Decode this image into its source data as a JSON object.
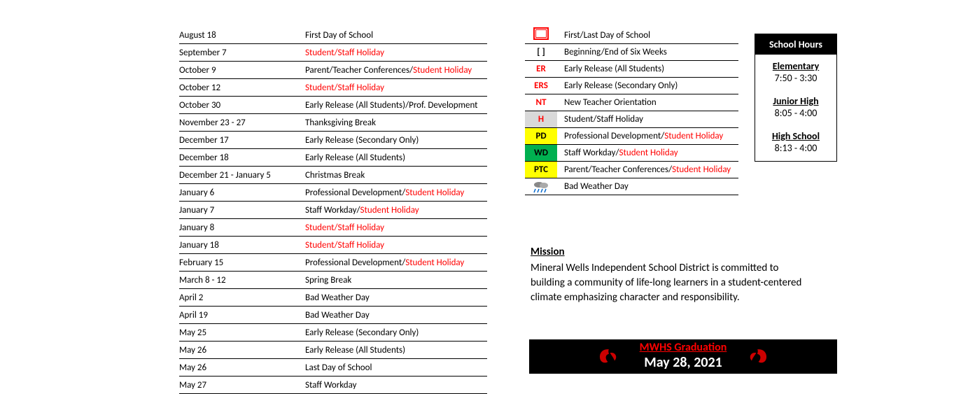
{
  "events": [
    {
      "date": "August 18",
      "desc_parts": [
        {
          "t": "First Day of School",
          "red": false
        }
      ]
    },
    {
      "date": "September 7",
      "desc_parts": [
        {
          "t": "Student/Staff Holiday",
          "red": true
        }
      ]
    },
    {
      "date": "October 9",
      "desc_parts": [
        {
          "t": "Parent/Teacher Conferences/",
          "red": false
        },
        {
          "t": "Student Holiday",
          "red": true
        }
      ]
    },
    {
      "date": "October 12",
      "desc_parts": [
        {
          "t": "Student/Staff Holiday",
          "red": true
        }
      ]
    },
    {
      "date": "October 30",
      "desc_parts": [
        {
          "t": "Early Release (All Students)/Prof. Development",
          "red": false
        }
      ]
    },
    {
      "date": "November 23 - 27",
      "desc_parts": [
        {
          "t": "Thanksgiving Break",
          "red": false
        }
      ]
    },
    {
      "date": "December 17",
      "desc_parts": [
        {
          "t": "Early Release (Secondary Only)",
          "red": false
        }
      ]
    },
    {
      "date": "December 18",
      "desc_parts": [
        {
          "t": "Early Release (All Students)",
          "red": false
        }
      ]
    },
    {
      "date": "December 21 - January 5",
      "desc_parts": [
        {
          "t": "Christmas Break",
          "red": false
        }
      ]
    },
    {
      "date": "January 6",
      "desc_parts": [
        {
          "t": "Professional Development/",
          "red": false
        },
        {
          "t": "Student Holiday",
          "red": true
        }
      ]
    },
    {
      "date": "January 7",
      "desc_parts": [
        {
          "t": "Staff Workday/",
          "red": false
        },
        {
          "t": "Student Holiday",
          "red": true
        }
      ]
    },
    {
      "date": "January 8",
      "desc_parts": [
        {
          "t": "Student/Staff Holiday",
          "red": true
        }
      ]
    },
    {
      "date": "January 18",
      "desc_parts": [
        {
          "t": "Student/Staff Holiday",
          "red": true
        }
      ]
    },
    {
      "date": "February 15",
      "desc_parts": [
        {
          "t": "Professional Development/",
          "red": false
        },
        {
          "t": "Student Holiday",
          "red": true
        }
      ]
    },
    {
      "date": "March 8 - 12",
      "desc_parts": [
        {
          "t": "Spring Break",
          "red": false
        }
      ]
    },
    {
      "date": "April 2",
      "desc_parts": [
        {
          "t": "Bad Weather Day",
          "red": false
        }
      ]
    },
    {
      "date": "April 19",
      "desc_parts": [
        {
          "t": "Bad Weather Day",
          "red": false
        }
      ]
    },
    {
      "date": "May 25",
      "desc_parts": [
        {
          "t": "Early Release (Secondary Only)",
          "red": false
        }
      ]
    },
    {
      "date": "May 26",
      "desc_parts": [
        {
          "t": "Early Release (All Students)",
          "red": false
        }
      ]
    },
    {
      "date": "May 26",
      "desc_parts": [
        {
          "t": "Last Day of School",
          "red": false
        }
      ]
    },
    {
      "date": "May 27",
      "desc_parts": [
        {
          "t": "Staff Workday",
          "red": false
        }
      ]
    }
  ],
  "legend": [
    {
      "code": "",
      "icon": "square",
      "desc_parts": [
        {
          "t": "First/Last Day of School",
          "red": false
        }
      ],
      "code_red": false
    },
    {
      "code": "[  ]",
      "desc_parts": [
        {
          "t": "Beginning/End of Six Weeks",
          "red": false
        }
      ],
      "code_red": false
    },
    {
      "code": "ER",
      "desc_parts": [
        {
          "t": "Early Release (All Students)",
          "red": false
        }
      ],
      "code_red": true
    },
    {
      "code": "ERS",
      "desc_parts": [
        {
          "t": "Early Release (Secondary Only)",
          "red": false
        }
      ],
      "code_red": true
    },
    {
      "code": "NT",
      "desc_parts": [
        {
          "t": "New Teacher Orientation",
          "red": false
        }
      ],
      "code_red": true
    },
    {
      "code": "H",
      "desc_parts": [
        {
          "t": "Student/Staff Holiday",
          "red": false
        }
      ],
      "code_red": true,
      "bg": "#d9d9d9"
    },
    {
      "code": "PD",
      "desc_parts": [
        {
          "t": "Professional Development/",
          "red": false
        },
        {
          "t": "Student Holiday",
          "red": true
        }
      ],
      "code_red": false,
      "bg": "#ffff00"
    },
    {
      "code": "WD",
      "desc_parts": [
        {
          "t": "Staff Workday/",
          "red": false
        },
        {
          "t": "Student Holiday",
          "red": true
        }
      ],
      "code_red": false,
      "bg": "#00b050"
    },
    {
      "code": "PTC",
      "desc_parts": [
        {
          "t": "Parent/Teacher Conferences/",
          "red": false
        },
        {
          "t": "Student Holiday",
          "red": true
        }
      ],
      "code_red": false,
      "bg": "#ffff00"
    },
    {
      "code": "",
      "icon": "weather",
      "desc_parts": [
        {
          "t": "Bad Weather Day",
          "red": false
        }
      ],
      "code_red": false
    }
  ],
  "hours": {
    "header": "School Hours",
    "levels": [
      {
        "label": "Elementary",
        "time": "7:50 - 3:30"
      },
      {
        "label": "Junior High",
        "time": "8:05 - 4:00"
      },
      {
        "label": "High School",
        "time": "8:13 - 4:00"
      }
    ]
  },
  "mission": {
    "title": "Mission",
    "body": "Mineral Wells Independent School District is committed to building a community of life-long learners in a student-centered climate emphasizing character and responsibility."
  },
  "graduation": {
    "line1": "MWHS Graduation",
    "line2": "May 28, 2021"
  },
  "colors": {
    "red": "#ff0000",
    "black": "#000000",
    "yellow": "#ffff00",
    "green": "#00b050",
    "gray": "#d9d9d9"
  }
}
